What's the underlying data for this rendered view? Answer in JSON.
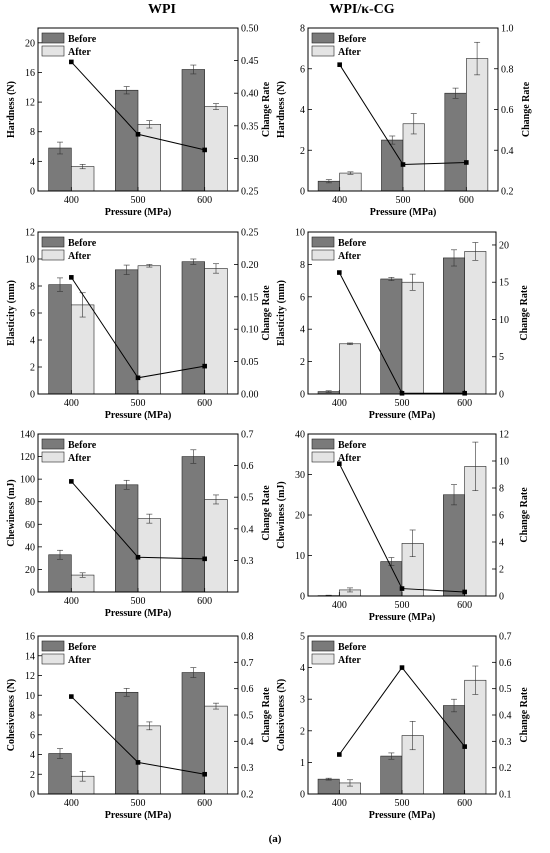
{
  "header": {
    "left_title": "WPI",
    "right_title": "WPI/κ-CG",
    "figure_label": "(a)"
  },
  "colors": {
    "before": "#7a7a7a",
    "after": "#e4e4e4",
    "line": "#000000"
  },
  "chart_data": [
    {
      "type": "bar",
      "categories": [
        "400",
        "500",
        "600"
      ],
      "xlabel": "Pressure (MPa)",
      "ylabel": "Hardness (N)",
      "y2label": "Change Rate",
      "ylim": [
        0,
        22
      ],
      "yticks": [
        0,
        4,
        8,
        12,
        16,
        20
      ],
      "y2lim": [
        0.25,
        0.5
      ],
      "y2ticks": [
        0.25,
        0.3,
        0.35,
        0.4,
        0.45,
        0.5
      ],
      "y2format": 2,
      "series": [
        {
          "name": "Before",
          "values": [
            5.8,
            13.6,
            16.4
          ],
          "errors": [
            0.8,
            0.5,
            0.6
          ]
        },
        {
          "name": "After",
          "values": [
            3.3,
            9.0,
            11.4
          ],
          "errors": [
            0.3,
            0.5,
            0.4
          ]
        }
      ],
      "line": [
        0.448,
        0.337,
        0.313
      ]
    },
    {
      "type": "bar",
      "categories": [
        "400",
        "500",
        "600"
      ],
      "xlabel": "Pressure (MPa)",
      "ylabel": "Hardness (N)",
      "y2label": "Change Rate",
      "ylim": [
        0,
        8
      ],
      "yticks": [
        0,
        2,
        4,
        6,
        8
      ],
      "y2lim": [
        0.2,
        1.0
      ],
      "y2ticks": [
        0.2,
        0.4,
        0.6,
        0.8,
        1.0
      ],
      "y2format": 1,
      "series": [
        {
          "name": "Before",
          "values": [
            0.48,
            2.5,
            4.8
          ],
          "errors": [
            0.08,
            0.2,
            0.25
          ]
        },
        {
          "name": "After",
          "values": [
            0.88,
            3.3,
            6.5
          ],
          "errors": [
            0.06,
            0.5,
            0.8
          ]
        }
      ],
      "line": [
        0.82,
        0.33,
        0.34
      ]
    },
    {
      "type": "bar",
      "categories": [
        "400",
        "500",
        "600"
      ],
      "xlabel": "Pressure (MPa)",
      "ylabel": "Elasticity (mm)",
      "y2label": "Change Rate",
      "ylim": [
        0,
        12
      ],
      "yticks": [
        0,
        2,
        4,
        6,
        8,
        10,
        12
      ],
      "y2lim": [
        0,
        0.25
      ],
      "y2ticks": [
        0.0,
        0.05,
        0.1,
        0.15,
        0.2,
        0.25
      ],
      "y2format": 2,
      "series": [
        {
          "name": "Before",
          "values": [
            8.1,
            9.2,
            9.8
          ],
          "errors": [
            0.5,
            0.35,
            0.2
          ]
        },
        {
          "name": "After",
          "values": [
            6.6,
            9.5,
            9.3
          ],
          "errors": [
            0.9,
            0.1,
            0.35
          ]
        }
      ],
      "line": [
        0.18,
        0.025,
        0.043
      ]
    },
    {
      "type": "bar",
      "categories": [
        "400",
        "500",
        "600"
      ],
      "xlabel": "Pressure (MPa)",
      "ylabel": "Elasticity (mm)",
      "y2label": "Change Rate",
      "ylim": [
        0,
        10
      ],
      "yticks": [
        0,
        2,
        4,
        6,
        8,
        10
      ],
      "y2lim": [
        0,
        21.74
      ],
      "y2ticks": [
        0,
        5,
        10,
        15,
        20
      ],
      "y2format": 0,
      "series": [
        {
          "name": "Before",
          "values": [
            0.15,
            7.1,
            8.4
          ],
          "errors": [
            0.05,
            0.1,
            0.5
          ]
        },
        {
          "name": "After",
          "values": [
            3.1,
            6.9,
            8.8
          ],
          "errors": [
            0.05,
            0.5,
            0.55
          ]
        }
      ],
      "line": [
        16.3,
        0.1,
        0.1
      ]
    },
    {
      "type": "bar",
      "categories": [
        "400",
        "500",
        "600"
      ],
      "xlabel": "Pressure (MPa)",
      "ylabel": "Chewiness (mJ)",
      "y2label": "Change Rate",
      "ylim": [
        0,
        140
      ],
      "yticks": [
        0,
        20,
        40,
        60,
        80,
        100,
        120,
        140
      ],
      "y2lim": [
        0.2,
        0.7
      ],
      "y2ticks": [
        0.3,
        0.4,
        0.5,
        0.6,
        0.7
      ],
      "y2format": 1,
      "series": [
        {
          "name": "Before",
          "values": [
            33,
            95,
            120
          ],
          "errors": [
            4,
            4,
            6
          ]
        },
        {
          "name": "After",
          "values": [
            15,
            65,
            82
          ],
          "errors": [
            2,
            4,
            4
          ]
        }
      ],
      "line": [
        0.55,
        0.31,
        0.305
      ]
    },
    {
      "type": "bar",
      "categories": [
        "400",
        "500",
        "600"
      ],
      "xlabel": "Pressure (MPa)",
      "ylabel": "Chewiness (mJ)",
      "y2label": "Change Rate",
      "ylim": [
        0,
        40
      ],
      "yticks": [
        0,
        10,
        20,
        30,
        40
      ],
      "y2lim": [
        0,
        12
      ],
      "y2ticks": [
        0,
        2,
        4,
        6,
        8,
        10,
        12
      ],
      "y2format": 0,
      "series": [
        {
          "name": "Before",
          "values": [
            0.1,
            8.5,
            25
          ],
          "errors": [
            0.1,
            1,
            2.5
          ]
        },
        {
          "name": "After",
          "values": [
            1.5,
            13,
            32
          ],
          "errors": [
            0.5,
            3.3,
            6
          ]
        }
      ],
      "line": [
        9.8,
        0.55,
        0.3
      ]
    },
    {
      "type": "bar",
      "categories": [
        "400",
        "500",
        "600"
      ],
      "xlabel": "Pressure (MPa)",
      "ylabel": "Cohesiveness (N)",
      "y2label": "Change Rate",
      "ylim": [
        0,
        16
      ],
      "yticks": [
        0,
        2,
        4,
        6,
        8,
        10,
        12,
        14,
        16
      ],
      "y2lim": [
        0.2,
        0.8
      ],
      "y2ticks": [
        0.2,
        0.3,
        0.4,
        0.5,
        0.6,
        0.7,
        0.8
      ],
      "y2format": 1,
      "series": [
        {
          "name": "Before",
          "values": [
            4.1,
            10.3,
            12.3
          ],
          "errors": [
            0.5,
            0.4,
            0.5
          ]
        },
        {
          "name": "After",
          "values": [
            1.8,
            6.9,
            8.9
          ],
          "errors": [
            0.5,
            0.4,
            0.3
          ]
        }
      ],
      "line": [
        0.57,
        0.32,
        0.275
      ]
    },
    {
      "type": "bar",
      "categories": [
        "400",
        "500",
        "600"
      ],
      "xlabel": "Pressure (MPa)",
      "ylabel": "Cohesiveness (N)",
      "y2label": "Change Rate",
      "ylim": [
        0,
        5
      ],
      "yticks": [
        0,
        1,
        2,
        3,
        4,
        5
      ],
      "y2lim": [
        0.1,
        0.7
      ],
      "y2ticks": [
        0.1,
        0.2,
        0.3,
        0.4,
        0.5,
        0.6,
        0.7
      ],
      "y2format": 1,
      "series": [
        {
          "name": "Before",
          "values": [
            0.47,
            1.2,
            2.8
          ],
          "errors": [
            0.03,
            0.1,
            0.2
          ]
        },
        {
          "name": "After",
          "values": [
            0.35,
            1.85,
            3.6
          ],
          "errors": [
            0.1,
            0.45,
            0.45
          ]
        }
      ],
      "line": [
        0.25,
        0.58,
        0.28
      ]
    }
  ]
}
